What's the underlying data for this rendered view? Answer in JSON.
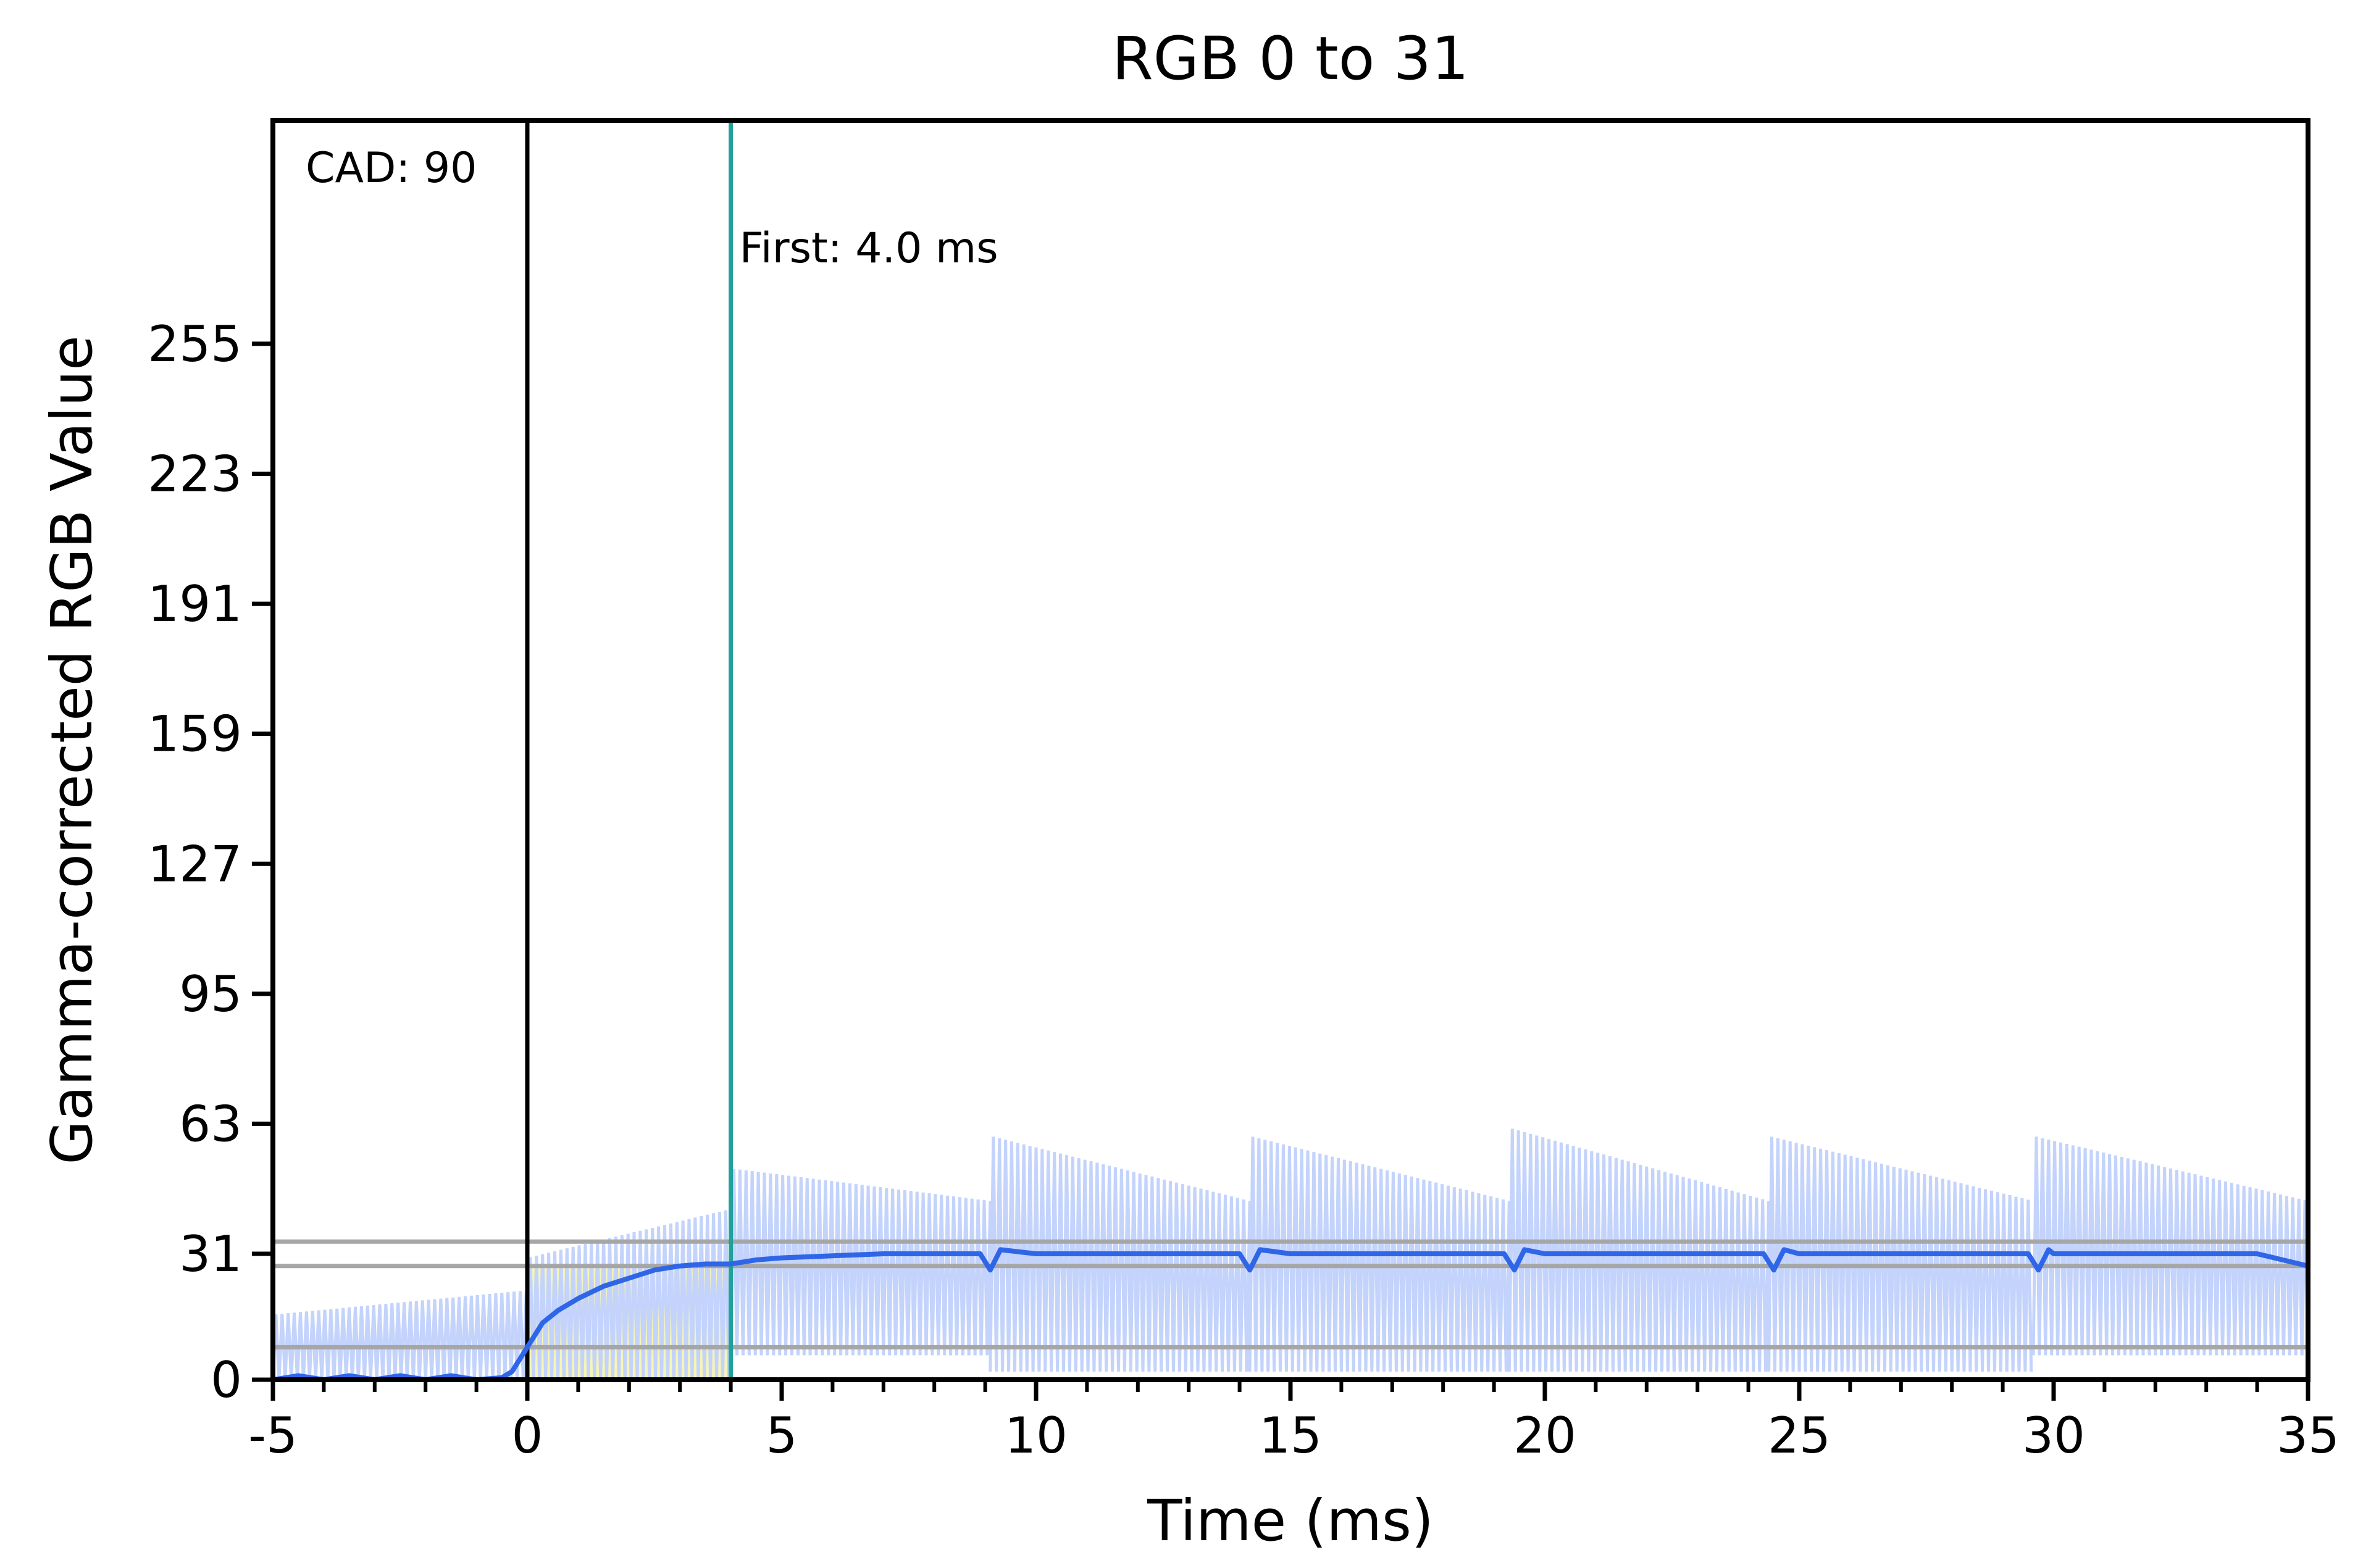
{
  "chart_data": {
    "type": "line",
    "title": "RGB 0 to 31",
    "xlabel": "Time (ms)",
    "ylabel": "Gamma-corrected RGB Value",
    "xlim": [
      -5,
      35
    ],
    "ylim": [
      0,
      310
    ],
    "xticks": [
      -5,
      0,
      5,
      10,
      15,
      20,
      25,
      30,
      35
    ],
    "xticks_minor_step": 1,
    "yticks": [
      0,
      31,
      63,
      95,
      127,
      159,
      191,
      223,
      255
    ],
    "grid": false,
    "legend": "none",
    "annotations": {
      "cad": "CAD: 90",
      "first": "First: 4.0 ms"
    },
    "reference_lines": {
      "start_x": 0,
      "first_x": 4.0,
      "horizontal_y": [
        8,
        28,
        34
      ]
    },
    "highlight_region": {
      "x": [
        0,
        4.0
      ],
      "y": [
        0,
        28
      ]
    },
    "series": [
      {
        "role": "raw",
        "color": "#c3d3fb",
        "segments": [
          {
            "x": [
              -5,
              0
            ],
            "low": 0,
            "high": [
              16,
              22
            ]
          },
          {
            "x": [
              0,
              4
            ],
            "low": 0,
            "high": [
              30,
              42
            ]
          },
          {
            "x": [
              4,
              9.1
            ],
            "low": 6,
            "high": [
              52,
              44
            ]
          },
          {
            "x": [
              9.1,
              14.2
            ],
            "low": 2,
            "high": [
              60,
              44
            ]
          },
          {
            "x": [
              14.2,
              19.3
            ],
            "low": 2,
            "high": [
              60,
              44
            ]
          },
          {
            "x": [
              19.3,
              24.4
            ],
            "low": 2,
            "high": [
              62,
              44
            ]
          },
          {
            "x": [
              24.4,
              29.6
            ],
            "low": 2,
            "high": [
              60,
              44
            ]
          },
          {
            "x": [
              29.6,
              35
            ],
            "low": 6,
            "high": [
              60,
              44
            ]
          }
        ]
      },
      {
        "role": "smoothed",
        "color": "#2f66e8",
        "x": [
          -5,
          -4.5,
          -4,
          -3.5,
          -3,
          -2.5,
          -2,
          -1.5,
          -1,
          -0.5,
          -0.3,
          0,
          0.3,
          0.6,
          1,
          1.5,
          2,
          2.5,
          3,
          3.5,
          4,
          4.5,
          5,
          6,
          7,
          8,
          8.9,
          9.1,
          9.3,
          10,
          12,
          14,
          14.2,
          14.4,
          15,
          17,
          19.2,
          19.4,
          19.6,
          20,
          22,
          24.3,
          24.5,
          24.7,
          25,
          27,
          29.5,
          29.7,
          29.9,
          30,
          32,
          34,
          35
        ],
        "y": [
          0,
          1,
          0,
          1,
          0,
          1,
          0,
          1,
          0,
          0.5,
          2,
          8,
          14,
          17,
          20,
          23,
          25,
          27,
          28,
          28.5,
          28.5,
          29.5,
          30,
          30.5,
          31,
          31,
          31,
          27,
          32,
          31,
          31,
          31,
          27,
          32,
          31,
          31,
          31,
          27,
          32,
          31,
          31,
          31,
          27,
          32,
          31,
          31,
          31,
          27,
          32,
          31,
          31,
          31,
          28
        ]
      }
    ]
  }
}
